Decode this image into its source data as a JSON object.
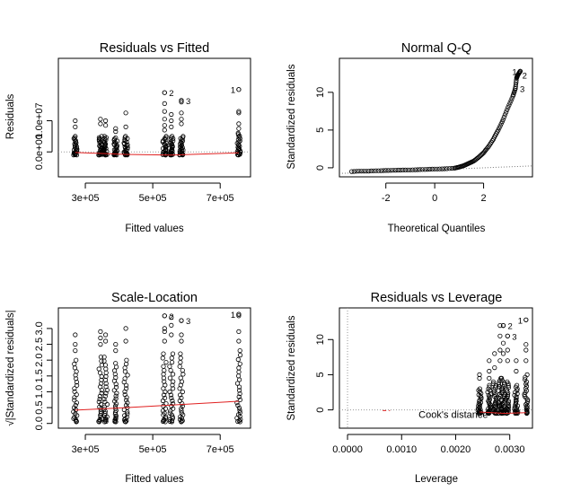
{
  "chart_data": [
    {
      "type": "scatter",
      "title": "Residuals vs Fitted",
      "xlabel": "Fitted values",
      "ylabel": "Residuals",
      "xlim": [
        220000,
        790000
      ],
      "ylim": [
        -8000000,
        30000000
      ],
      "x_ticks": [
        300000,
        500000,
        700000
      ],
      "x_tick_labels": [
        "3e+05",
        "5e+05",
        "7e+05"
      ],
      "y_ticks": [
        0,
        10000000
      ],
      "y_tick_labels": [
        "0.0e+00",
        "1.0e+07"
      ],
      "columns": [
        {
          "x": 270000,
          "ymin": -1000000,
          "ymax": 5000000,
          "outliers": [
            10000000,
            8000000
          ]
        },
        {
          "x": 345000,
          "ymin": -1000000,
          "ymax": 5000000,
          "outliers": [
            10500000,
            9000000
          ]
        },
        {
          "x": 360000,
          "ymin": -1000000,
          "ymax": 5000000,
          "outliers": [
            10000000,
            8500000
          ]
        },
        {
          "x": 390000,
          "ymin": -1000000,
          "ymax": 4500000,
          "outliers": [
            7500000,
            6500000
          ]
        },
        {
          "x": 420000,
          "ymin": -1000000,
          "ymax": 5000000,
          "outliers": [
            12500000,
            8000000
          ]
        },
        {
          "x": 535000,
          "ymin": -1000000,
          "ymax": 5000000,
          "outliers": [
            19000000,
            15500000,
            13000000,
            10500000,
            8500000,
            7000000
          ]
        },
        {
          "x": 555000,
          "ymin": -1000000,
          "ymax": 5000000,
          "outliers": [
            12000000,
            10000000,
            8000000
          ]
        },
        {
          "x": 585000,
          "ymin": -1000000,
          "ymax": 5000000,
          "outliers": [
            16500000,
            16000000,
            12500000,
            10500000,
            9000000
          ]
        },
        {
          "x": 755000,
          "ymin": -1000000,
          "ymax": 6000000,
          "outliers": [
            20000000,
            13000000,
            12500000,
            9000000,
            7500000
          ]
        }
      ],
      "point_labels": [
        {
          "label": "1",
          "x": 755000,
          "y": 20000000
        },
        {
          "label": "2",
          "x": 535000,
          "y": 19000000
        },
        {
          "label": "3",
          "x": 585000,
          "y": 16500000
        }
      ],
      "smoother": {
        "x": [
          270000,
          420000,
          555000,
          755000
        ],
        "y": [
          -200000,
          -800000,
          -1000000,
          -300000
        ]
      }
    },
    {
      "type": "scatter",
      "title": "Normal Q-Q",
      "xlabel": "Theoretical Quantiles",
      "ylabel": "Standardized residuals",
      "xlim": [
        -3.9,
        4.0
      ],
      "ylim": [
        -1.2,
        14.5
      ],
      "x_ticks": [
        -2,
        0,
        2
      ],
      "x_tick_labels": [
        "-2",
        "0",
        "2"
      ],
      "y_ticks": [
        0,
        5,
        10
      ],
      "y_tick_labels": [
        "0",
        "5",
        "10"
      ],
      "qq_points": [
        [
          -3.4,
          -0.5
        ],
        [
          -3.1,
          -0.45
        ],
        [
          -2.8,
          -0.45
        ],
        [
          -2.5,
          -0.4
        ],
        [
          -2.2,
          -0.38
        ],
        [
          -1.9,
          -0.35
        ],
        [
          -1.6,
          -0.32
        ],
        [
          -1.3,
          -0.3
        ],
        [
          -1.0,
          -0.28
        ],
        [
          -0.7,
          -0.25
        ],
        [
          -0.4,
          -0.22
        ],
        [
          -0.1,
          -0.18
        ],
        [
          0.2,
          -0.15
        ],
        [
          0.5,
          -0.12
        ],
        [
          0.8,
          -0.05
        ],
        [
          1.0,
          0.1
        ],
        [
          1.2,
          0.3
        ],
        [
          1.4,
          0.6
        ],
        [
          1.6,
          0.9
        ],
        [
          1.8,
          1.4
        ],
        [
          2.0,
          2.0
        ],
        [
          2.2,
          2.8
        ],
        [
          2.4,
          3.8
        ],
        [
          2.6,
          5.0
        ],
        [
          2.8,
          6.4
        ],
        [
          3.0,
          8.0
        ],
        [
          3.2,
          9.5
        ],
        [
          3.3,
          10.5
        ],
        [
          3.35,
          11.9
        ],
        [
          3.4,
          12.3
        ],
        [
          3.5,
          12.8
        ]
      ],
      "point_labels": [
        {
          "label": "1",
          "x": 3.5,
          "y": 12.8
        },
        {
          "label": "2",
          "x": 3.4,
          "y": 12.3
        },
        {
          "label": "3",
          "x": 3.3,
          "y": 10.5
        }
      ],
      "reference_line": {
        "x": [
          -3.9,
          4.0
        ],
        "y": [
          -0.75,
          0.25
        ]
      }
    },
    {
      "type": "scatter",
      "title": "Scale-Location",
      "xlabel": "Fitted values",
      "ylabel": "√|Standardized residuals|",
      "xlim": [
        220000,
        790000
      ],
      "ylim": [
        -0.15,
        3.65
      ],
      "x_ticks": [
        300000,
        500000,
        700000
      ],
      "x_tick_labels": [
        "3e+05",
        "5e+05",
        "7e+05"
      ],
      "y_ticks": [
        0.0,
        0.5,
        1.0,
        1.5,
        2.0,
        2.5,
        3.0
      ],
      "y_tick_labels": [
        "0.0",
        "0.5",
        "1.0",
        "1.5",
        "2.0",
        "2.5",
        "3.0"
      ],
      "columns": [
        {
          "x": 270000,
          "ymin": 0.05,
          "ymax": 2.0,
          "outliers": [
            2.8,
            2.5,
            2.3
          ]
        },
        {
          "x": 345000,
          "ymin": 0.05,
          "ymax": 2.1,
          "outliers": [
            2.9,
            2.7,
            2.5
          ]
        },
        {
          "x": 360000,
          "ymin": 0.05,
          "ymax": 2.1,
          "outliers": [
            2.8,
            2.6
          ]
        },
        {
          "x": 390000,
          "ymin": 0.05,
          "ymax": 1.9,
          "outliers": [
            2.5,
            2.3
          ]
        },
        {
          "x": 420000,
          "ymin": 0.05,
          "ymax": 2.0,
          "outliers": [
            3.0,
            2.6
          ]
        },
        {
          "x": 535000,
          "ymin": 0.05,
          "ymax": 2.2,
          "outliers": [
            3.4,
            3.0,
            2.9,
            2.6
          ]
        },
        {
          "x": 555000,
          "ymin": 0.05,
          "ymax": 2.2,
          "outliers": [
            3.35,
            3.1,
            2.8
          ]
        },
        {
          "x": 585000,
          "ymin": 0.05,
          "ymax": 2.2,
          "outliers": [
            3.25,
            2.8,
            2.6
          ]
        },
        {
          "x": 755000,
          "ymin": 0.05,
          "ymax": 2.3,
          "outliers": [
            3.45,
            3.4,
            2.9,
            2.6
          ]
        }
      ],
      "point_labels": [
        {
          "label": "1",
          "x": 755000,
          "y": 3.45
        },
        {
          "label": "2",
          "x": 535000,
          "y": 3.4
        },
        {
          "label": "3",
          "x": 585000,
          "y": 3.25
        }
      ],
      "smoother": {
        "x": [
          270000,
          420000,
          555000,
          755000
        ],
        "y": [
          0.42,
          0.5,
          0.58,
          0.7
        ]
      }
    },
    {
      "type": "scatter",
      "title": "Residuals vs Leverage",
      "xlabel": "Leverage",
      "ylabel": "Standardized residuals",
      "xlim": [
        -0.00015,
        0.00342
      ],
      "ylim": [
        -2.6,
        14.5
      ],
      "x_ticks": [
        0.0,
        0.001,
        0.002,
        0.003
      ],
      "x_tick_labels": [
        "0.0000",
        "0.0010",
        "0.0020",
        "0.0030"
      ],
      "y_ticks": [
        0,
        5,
        10
      ],
      "y_tick_labels": [
        "0",
        "5",
        "10"
      ],
      "columns": [
        {
          "x": 0.00244,
          "ymin": -0.5,
          "ymax": 3.0,
          "outliers": [
            5.0,
            4.5
          ]
        },
        {
          "x": 0.00262,
          "ymin": -0.5,
          "ymax": 3.5,
          "outliers": [
            7.0,
            5.5,
            4.5
          ]
        },
        {
          "x": 0.00272,
          "ymin": -0.5,
          "ymax": 4.0,
          "outliers": [
            8.0,
            6.0
          ]
        },
        {
          "x": 0.00282,
          "ymin": -0.5,
          "ymax": 4.5,
          "outliers": [
            12.0,
            10.5,
            8.5,
            7.0
          ]
        },
        {
          "x": 0.00288,
          "ymin": -0.5,
          "ymax": 4.5,
          "outliers": [
            12.0,
            9.5,
            8.0
          ]
        },
        {
          "x": 0.00296,
          "ymin": -0.5,
          "ymax": 4.0,
          "outliers": [
            10.5,
            8.5,
            7.0
          ]
        },
        {
          "x": 0.00312,
          "ymin": -0.5,
          "ymax": 3.5,
          "outliers": [
            7.0,
            5.5
          ]
        },
        {
          "x": 0.0033,
          "ymin": -0.5,
          "ymax": 5.0,
          "outliers": [
            12.8,
            9.3,
            8.5,
            7.0
          ]
        }
      ],
      "point_labels": [
        {
          "label": "1",
          "x": 0.0033,
          "y": 12.8
        },
        {
          "label": "2",
          "x": 0.00288,
          "y": 12.0
        },
        {
          "label": "3",
          "x": 0.00296,
          "y": 10.5
        }
      ],
      "smoother": {
        "x": [
          0.00244,
          0.0029,
          0.0033
        ],
        "y": [
          -0.3,
          -0.5,
          -0.4
        ]
      },
      "zero_line": 0,
      "cooks_line": {
        "x": [
          0.00065,
          0.00125
        ],
        "y": [
          -0.1,
          -0.1
        ]
      },
      "cooks_label": "Cook's distance"
    }
  ]
}
